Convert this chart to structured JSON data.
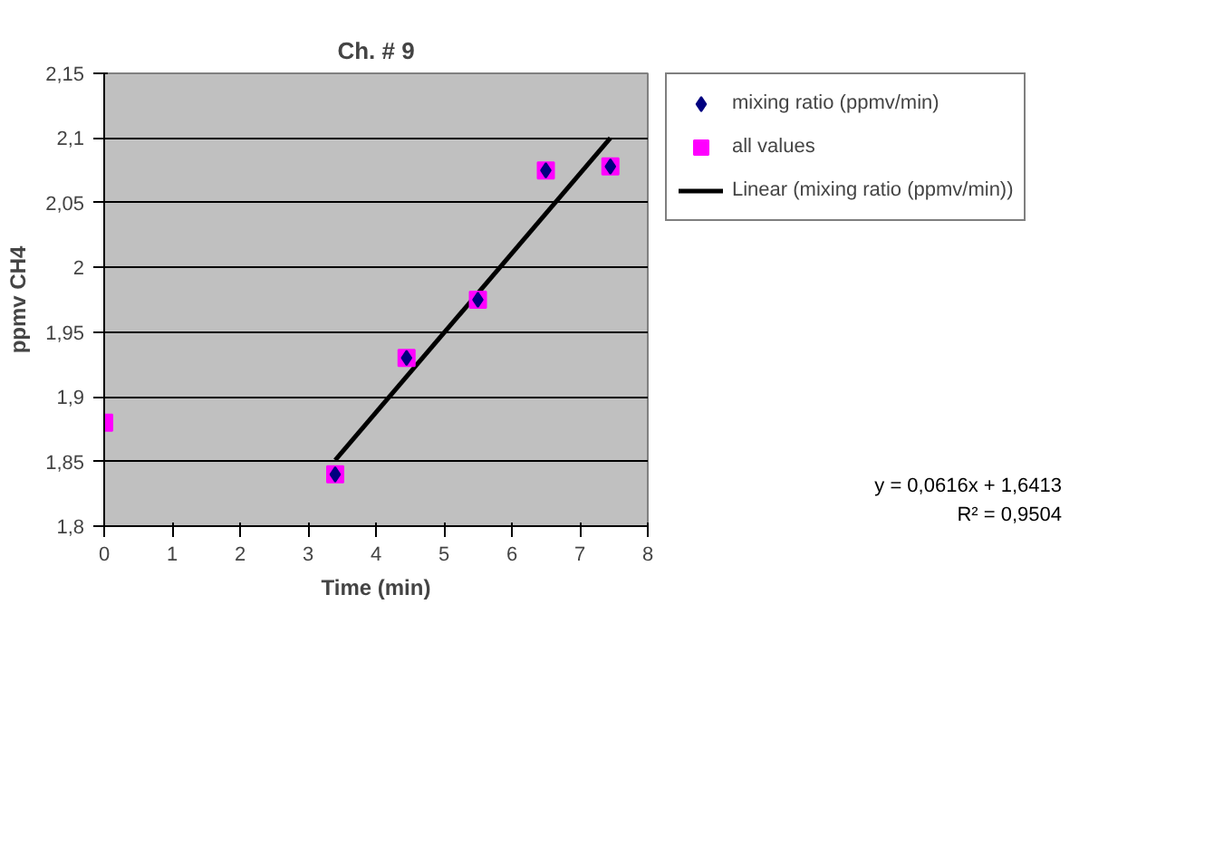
{
  "chart_data": {
    "type": "scatter",
    "title": "Ch. # 9",
    "xlabel": "Time (min)",
    "ylabel": "ppmv CH4",
    "xlim": [
      0,
      8
    ],
    "xticks": [
      0,
      1,
      2,
      3,
      4,
      5,
      6,
      7,
      8
    ],
    "ylim": [
      1.8,
      2.15
    ],
    "yticks": [
      {
        "value": 1.8,
        "label": "1,8"
      },
      {
        "value": 1.85,
        "label": "1,85"
      },
      {
        "value": 1.9,
        "label": "1,9"
      },
      {
        "value": 1.95,
        "label": "1,95"
      },
      {
        "value": 2,
        "label": "2"
      },
      {
        "value": 2.05,
        "label": "2,05"
      },
      {
        "value": 2.1,
        "label": "2,1"
      },
      {
        "value": 2.15,
        "label": "2,15"
      }
    ],
    "grid": "y",
    "legend": "right",
    "series": [
      {
        "name": "mixing ratio (ppmv/min)",
        "color": "#000080",
        "marker": "diamond",
        "x": [
          3.4,
          4.45,
          5.5,
          6.5,
          7.45
        ],
        "values": [
          1.84,
          1.93,
          1.975,
          2.075,
          2.078
        ]
      },
      {
        "name": "all values",
        "color": "#ff00ff",
        "marker": "square",
        "x": [
          0,
          3.4,
          4.45,
          5.5,
          6.5,
          7.45
        ],
        "values": [
          1.88,
          1.84,
          1.93,
          1.975,
          2.075,
          2.078
        ]
      },
      {
        "name": "Linear (mixing ratio (ppmv/min))",
        "type": "line",
        "color": "#000000",
        "marker": "none",
        "x": [
          3.4,
          7.45
        ],
        "values": [
          1.851,
          2.1
        ]
      }
    ],
    "annotations": [
      "y = 0,0616x + 1,6413",
      "R² = 0,9504"
    ]
  }
}
